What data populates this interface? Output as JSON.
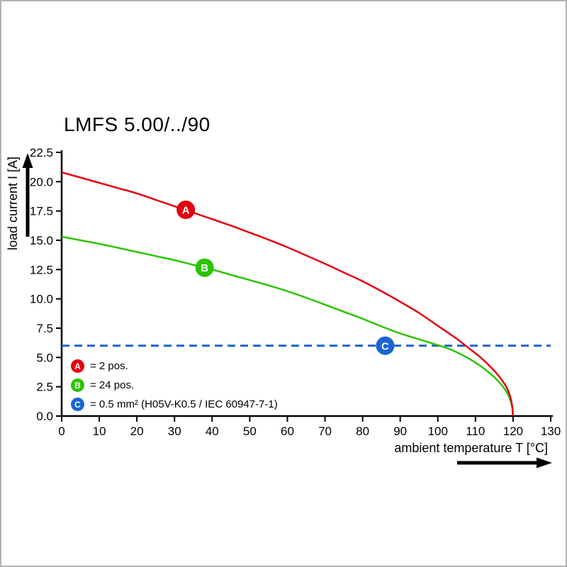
{
  "title": "LMFS 5.00/../90",
  "axes": {
    "x_label": "ambient temperature T [°C]",
    "y_label": "load current I [A]"
  },
  "legend": [
    {
      "letter": "A",
      "color": "#e2000f",
      "text": "= 2 pos."
    },
    {
      "letter": "B",
      "color": "#2bc400",
      "text": "= 24 pos."
    },
    {
      "letter": "C",
      "color": "#1a64d2",
      "text": "= 0.5 mm² (H05V-K0.5 / IEC 60947-7-1)"
    }
  ],
  "chart_data": {
    "type": "line",
    "title": "LMFS 5.00/../90",
    "xlabel": "ambient temperature T [°C]",
    "ylabel": "load current I [A]",
    "xlim": [
      0,
      130
    ],
    "ylim": [
      0,
      22.5
    ],
    "xticks": [
      0,
      10,
      20,
      30,
      40,
      50,
      60,
      70,
      80,
      90,
      100,
      110,
      120,
      130
    ],
    "yticks": [
      0,
      2.5,
      5,
      7.5,
      10,
      12.5,
      15,
      17.5,
      20,
      22.5
    ],
    "grid": false,
    "legend_position": "lower-left",
    "series": [
      {
        "name": "C",
        "label": "= 0.5 mm² (H05V-K0.5 / IEC 60947-7-1)",
        "color": "#1a64d2",
        "style": "dashed",
        "marker": {
          "letter": "C",
          "x": 86,
          "y": 6
        },
        "points": [
          [
            0,
            6
          ],
          [
            130,
            6
          ]
        ]
      },
      {
        "name": "B",
        "label": "= 24 pos.",
        "color": "#2bc400",
        "style": "solid",
        "marker": {
          "letter": "B",
          "x": 38,
          "y": 12.66
        },
        "points": [
          [
            0,
            15.3
          ],
          [
            5,
            15.0
          ],
          [
            10,
            14.7
          ],
          [
            15,
            14.35
          ],
          [
            20,
            14.0
          ],
          [
            25,
            13.65
          ],
          [
            30,
            13.3
          ],
          [
            35,
            12.9
          ],
          [
            40,
            12.5
          ],
          [
            45,
            12.05
          ],
          [
            50,
            11.6
          ],
          [
            55,
            11.15
          ],
          [
            60,
            10.65
          ],
          [
            65,
            10.1
          ],
          [
            70,
            9.5
          ],
          [
            75,
            8.9
          ],
          [
            80,
            8.3
          ],
          [
            85,
            7.65
          ],
          [
            90,
            7.05
          ],
          [
            95,
            6.55
          ],
          [
            99,
            6.15
          ],
          [
            102,
            5.85
          ],
          [
            105,
            5.45
          ],
          [
            108,
            4.95
          ],
          [
            111,
            4.35
          ],
          [
            114,
            3.6
          ],
          [
            116,
            3.0
          ],
          [
            118,
            2.2
          ],
          [
            119,
            1.6
          ],
          [
            119.8,
            0.7
          ],
          [
            120,
            0
          ]
        ]
      },
      {
        "name": "A",
        "label": "= 2 pos.",
        "color": "#e2000f",
        "style": "solid",
        "marker": {
          "letter": "A",
          "x": 33,
          "y": 17.6
        },
        "points": [
          [
            0,
            20.8
          ],
          [
            5,
            20.35
          ],
          [
            10,
            19.9
          ],
          [
            15,
            19.45
          ],
          [
            20,
            19.0
          ],
          [
            25,
            18.45
          ],
          [
            30,
            17.9
          ],
          [
            35,
            17.35
          ],
          [
            40,
            16.8
          ],
          [
            45,
            16.25
          ],
          [
            50,
            15.65
          ],
          [
            55,
            15.05
          ],
          [
            60,
            14.4
          ],
          [
            65,
            13.7
          ],
          [
            70,
            13.0
          ],
          [
            75,
            12.25
          ],
          [
            80,
            11.5
          ],
          [
            85,
            10.65
          ],
          [
            90,
            9.75
          ],
          [
            95,
            8.8
          ],
          [
            100,
            7.7
          ],
          [
            105,
            6.6
          ],
          [
            108,
            5.85
          ],
          [
            111,
            5.1
          ],
          [
            114,
            4.2
          ],
          [
            116,
            3.5
          ],
          [
            118,
            2.6
          ],
          [
            119,
            1.9
          ],
          [
            119.7,
            1.0
          ],
          [
            120,
            0
          ]
        ]
      }
    ]
  }
}
